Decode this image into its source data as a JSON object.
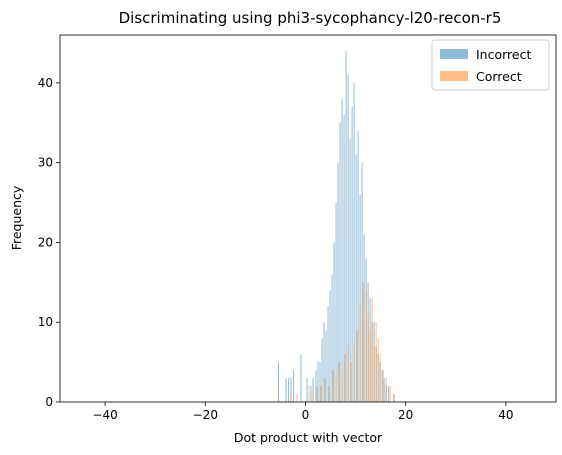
{
  "chart_data": {
    "type": "bar",
    "title": "Discriminating using phi3-sycophancy-l20-recon-r5",
    "xlabel": "Dot product with vector",
    "ylabel": "Frequency",
    "xlim": [
      -49,
      50
    ],
    "ylim": [
      0,
      46
    ],
    "xticks": [
      -40,
      -20,
      0,
      20,
      40
    ],
    "xtick_labels": [
      "−40",
      "−20",
      "0",
      "20",
      "40"
    ],
    "yticks": [
      0,
      10,
      20,
      30,
      40
    ],
    "grid": false,
    "legend_position": "top-right",
    "bin_width": 0.2,
    "series": [
      {
        "name": "Incorrect",
        "color": "#1f77b4",
        "opacity": 0.5,
        "x": [
          -5.5,
          -4.0,
          -3.5,
          -3.0,
          -2.5,
          -1.0,
          0.2,
          1.0,
          1.4,
          2.0,
          2.4,
          2.8,
          3.2,
          3.6,
          4.0,
          4.4,
          4.8,
          5.2,
          5.6,
          6.0,
          6.4,
          6.8,
          7.2,
          7.6,
          8.0,
          8.4,
          8.8,
          9.2,
          9.6,
          10.0,
          10.4,
          10.8,
          11.2,
          11.6,
          12.0,
          12.4,
          12.8,
          13.2,
          13.6,
          14.0,
          14.4,
          14.8,
          15.2,
          15.6,
          16.0,
          16.5,
          17.5
        ],
        "values": [
          5,
          3,
          3,
          3,
          4,
          6,
          3,
          2,
          3,
          4,
          5,
          5,
          8,
          10,
          9,
          12,
          14,
          16,
          20,
          25,
          30,
          35,
          38,
          36,
          44,
          41,
          33,
          37,
          40,
          31,
          34,
          26,
          30,
          21,
          18,
          15,
          13,
          10,
          10,
          7,
          6,
          5,
          4,
          3,
          2,
          2,
          1
        ]
      },
      {
        "name": "Correct",
        "color": "#ff7f0e",
        "opacity": 0.5,
        "x": [
          -3.0,
          -1.8,
          0.6,
          1.4,
          2.2,
          3.0,
          3.8,
          4.6,
          5.4,
          6.0,
          6.6,
          7.2,
          7.8,
          8.4,
          9.0,
          9.6,
          10.2,
          10.8,
          11.4,
          12.0,
          12.4,
          12.8,
          13.2,
          13.6,
          14.0,
          14.4,
          14.8,
          15.4,
          16.0,
          16.8,
          17.6
        ],
        "values": [
          1,
          1,
          2,
          1,
          2,
          2,
          3,
          2,
          4,
          3,
          5,
          4,
          6,
          7,
          5,
          7,
          9,
          12,
          15,
          14,
          11,
          9,
          13,
          7,
          10,
          8,
          6,
          4,
          3,
          2,
          1
        ]
      }
    ]
  }
}
